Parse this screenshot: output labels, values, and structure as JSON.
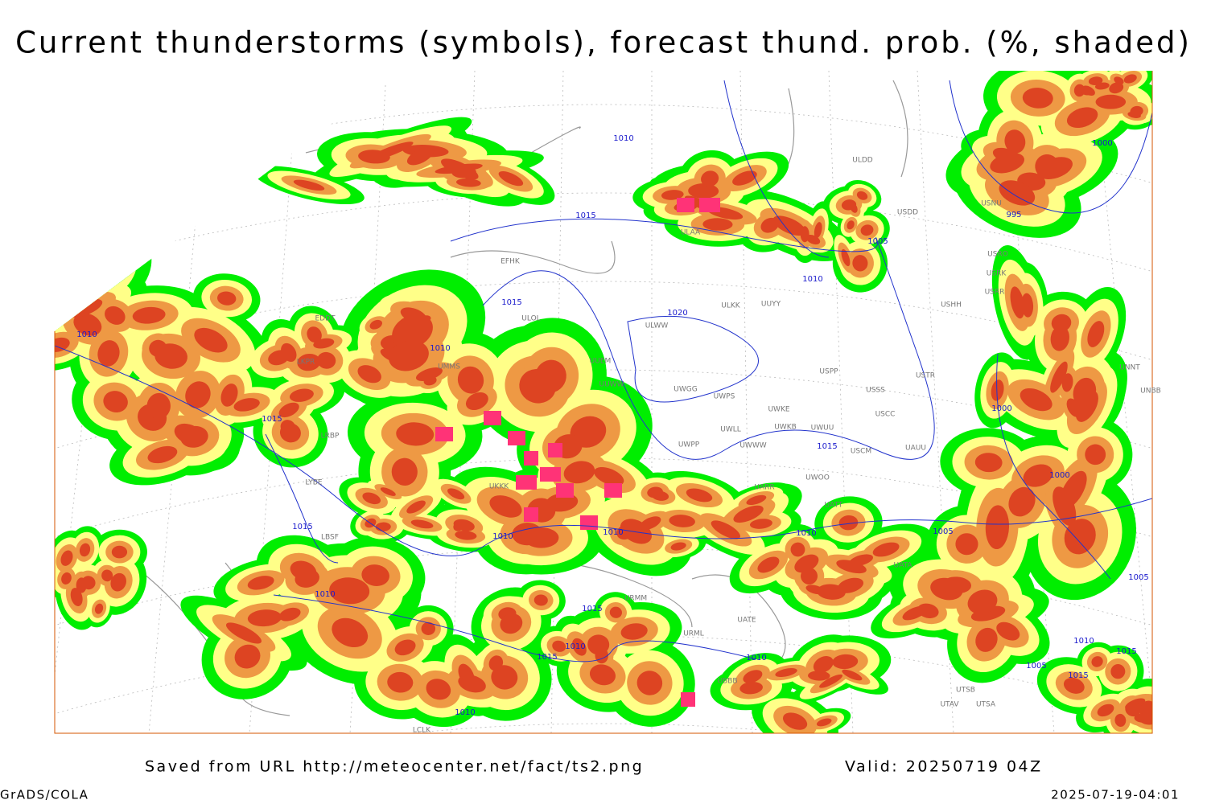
{
  "header": {
    "title": "Current thunderstorms (symbols), forecast thund. prob. (%, shaded)"
  },
  "footer": {
    "source": "Saved from URL http://meteocenter.net/fact/ts2.png",
    "valid": "Valid: 20250719 04Z",
    "credit": "GrADS/COLA",
    "timestamp": "2025-07-19-04:01"
  },
  "isobar_labels": [
    "1010",
    "1015",
    "1015",
    "1010",
    "1010",
    "1015",
    "1010",
    "1015",
    "1020",
    "1005",
    "1010",
    "1000",
    "995",
    "1000",
    "1000",
    "1005",
    "1010",
    "1015",
    "1010",
    "1010",
    "1015",
    "1010",
    "1015",
    "1010",
    "1010",
    "1005",
    "1010",
    "1015",
    "1005",
    "1015"
  ],
  "station_labels": [
    "ULDD",
    "USDD",
    "ULAA",
    "EFHK",
    "ULOL",
    "ULKK",
    "UUYY",
    "ULWW",
    "UUEM",
    "UUWW",
    "UWGG",
    "UWPS",
    "UWKE",
    "UWKB",
    "UWUU",
    "UWLL",
    "UWWW",
    "UWPP",
    "USSS",
    "USCC",
    "USCM",
    "UAUU",
    "UWOO",
    "UARR",
    "UATT",
    "USPP",
    "USTR",
    "USHH",
    "USRR",
    "USRK",
    "USRO",
    "USNU",
    "UNBB",
    "UNNT",
    "UATA",
    "UATE",
    "URML",
    "URMM",
    "UBBB",
    "UTSB",
    "UTAV",
    "UTSA",
    "LCLK",
    "LYBE",
    "LRBP",
    "EDDT",
    "LKPR",
    "LBSF",
    "UKKK",
    "UMMS"
  ]
}
